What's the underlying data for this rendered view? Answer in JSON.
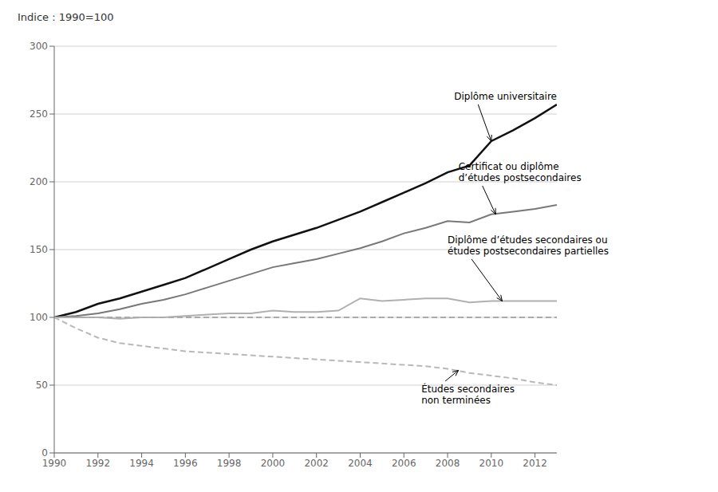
{
  "chart_data": {
    "type": "line",
    "title": "Indice : 1990=100",
    "x": [
      1990,
      1991,
      1992,
      1993,
      1994,
      1995,
      1996,
      1997,
      1998,
      1999,
      2000,
      2001,
      2002,
      2003,
      2004,
      2005,
      2006,
      2007,
      2008,
      2009,
      2010,
      2011,
      2012,
      2013
    ],
    "series": [
      {
        "color": "#111111",
        "line_style": "solid",
        "values": [
          100,
          104,
          110,
          114,
          119,
          124,
          129,
          136,
          143,
          150,
          156,
          161,
          166,
          172,
          178,
          185,
          192,
          199,
          207,
          212,
          230,
          238,
          247,
          257
        ]
      },
      {
        "color": "#787878",
        "line_style": "solid",
        "values": [
          100,
          101,
          103,
          106,
          110,
          113,
          117,
          122,
          127,
          132,
          137,
          140,
          143,
          147,
          151,
          156,
          162,
          166,
          171,
          170,
          176,
          178,
          180,
          183
        ]
      },
      {
        "color": "#b0b0b0",
        "line_style": "solid",
        "values": [
          100,
          100,
          100,
          99,
          100,
          100,
          101,
          102,
          103,
          103,
          105,
          104,
          104,
          105,
          114,
          112,
          113,
          114,
          114,
          111,
          112,
          112,
          112,
          112
        ]
      },
      {
        "color": "#aaaaaa",
        "line_style": "dashed",
        "values": [
          100,
          100,
          100,
          100,
          100,
          100,
          100,
          100,
          100,
          100,
          100,
          100,
          100,
          100,
          100,
          100,
          100,
          100,
          100,
          100,
          100,
          100,
          100,
          100
        ]
      },
      {
        "color": "#b8b8b8",
        "line_style": "dashed",
        "values": [
          100,
          92,
          85,
          81,
          79,
          77,
          75,
          74,
          73,
          72,
          71,
          70,
          69,
          68,
          67,
          66,
          65,
          64,
          62,
          59,
          57,
          55,
          52,
          50
        ]
      }
    ],
    "xlim": [
      1990,
      2013
    ],
    "xticks": [
      1990,
      1992,
      1994,
      1996,
      1998,
      2000,
      2002,
      2004,
      2006,
      2008,
      2010,
      2012
    ],
    "ylim": [
      0,
      300
    ],
    "yticks": [
      0,
      50,
      100,
      150,
      200,
      250,
      300
    ],
    "grid": true,
    "annotations": [
      {
        "text": "Diplôme universitaire",
        "x": 2010,
        "y": 230,
        "text_x": 2008.3,
        "text_y": 263
      },
      {
        "text": "Certificat ou diplôme\nd’études postsecondaires",
        "x": 2010.2,
        "y": 176,
        "text_x": 2008.5,
        "text_y": 207
      },
      {
        "text": "Diplôme d’études secondaires ou\nétudes postsecondaires partielles",
        "x": 2010.5,
        "y": 112,
        "text_x": 2008.0,
        "text_y": 153
      },
      {
        "text": "Études secondaires\nnon terminées",
        "x": 2008.5,
        "y": 61,
        "text_x": 2006.8,
        "text_y": 43
      }
    ]
  }
}
